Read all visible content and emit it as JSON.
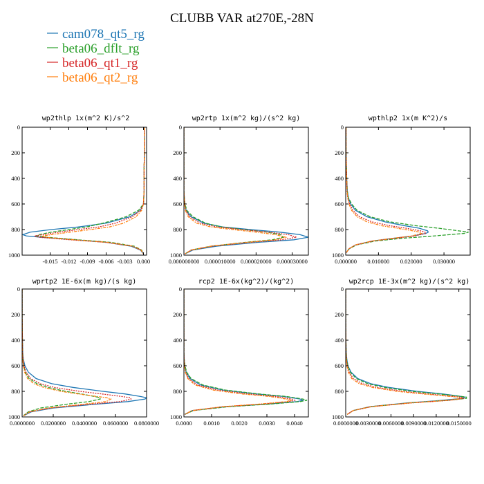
{
  "figure": {
    "title": "CLUBB VAR at270E,-28N",
    "legend": [
      {
        "name": "cam078_qt5_rg",
        "color": "#1f77b4"
      },
      {
        "name": "beta06_dflt_rg",
        "color": "#2ca02c"
      },
      {
        "name": "beta06_qt1_rg",
        "color": "#d62728"
      },
      {
        "name": "beta06_qt2_rg",
        "color": "#ff7f0e"
      }
    ]
  },
  "chart_data": [
    {
      "type": "line",
      "title": "wp2thlp  1x(m^2 K)/s^2",
      "xlim": [
        -0.0195,
        0.0005
      ],
      "xticks": [
        "-0.015",
        "-0.012",
        "-0.009",
        "-0.006",
        "-0.003",
        "0.000"
      ],
      "xtick_values": [
        -0.015,
        -0.012,
        -0.009,
        -0.006,
        -0.003,
        0.0
      ],
      "ylim": [
        1000,
        0
      ],
      "yticks": [
        "0",
        "200",
        "400",
        "600",
        "800",
        "1000"
      ],
      "y": [
        5,
        100,
        200,
        300,
        400,
        500,
        600,
        650,
        700,
        750,
        780,
        800,
        820,
        840,
        850,
        860,
        880,
        900,
        930,
        960,
        990
      ],
      "series": [
        {
          "name": "cam078_qt5_rg",
          "values": [
            0.0002,
            0.0002,
            0.0002,
            0.0001,
            0.0001,
            0.0001,
            0.0,
            -0.0005,
            -0.0022,
            -0.006,
            -0.0105,
            -0.0148,
            -0.0182,
            -0.0194,
            -0.0188,
            -0.0165,
            -0.011,
            -0.006,
            -0.002,
            -0.0005,
            0.0
          ]
        },
        {
          "name": "beta06_dflt_rg",
          "values": [
            0.0002,
            0.0002,
            0.0002,
            0.0001,
            0.0001,
            0.0001,
            0.0,
            -0.0008,
            -0.0028,
            -0.0065,
            -0.0092,
            -0.012,
            -0.0148,
            -0.0168,
            -0.0172,
            -0.0155,
            -0.0105,
            -0.0052,
            -0.0015,
            -0.0003,
            0.0
          ]
        },
        {
          "name": "beta06_qt1_rg",
          "values": [
            0.0002,
            0.0002,
            0.0002,
            0.0001,
            0.0001,
            0.0001,
            0.0,
            -0.0005,
            -0.0018,
            -0.0045,
            -0.0072,
            -0.0105,
            -0.0135,
            -0.0162,
            -0.0175,
            -0.0168,
            -0.0118,
            -0.006,
            -0.0018,
            -0.0004,
            0.0
          ]
        },
        {
          "name": "beta06_qt2_rg",
          "values": [
            0.0002,
            0.0002,
            0.0002,
            0.0001,
            0.0001,
            0.0001,
            0.0,
            -0.0003,
            -0.0012,
            -0.0032,
            -0.0055,
            -0.0085,
            -0.0118,
            -0.0148,
            -0.0163,
            -0.0158,
            -0.0112,
            -0.0058,
            -0.0017,
            -0.0004,
            0.0
          ]
        }
      ]
    },
    {
      "type": "line",
      "title": "wp2rtp  1x(m^2 kg)/(s^2 kg)",
      "xlim": [
        0.0,
        3.45e-05
      ],
      "xticks": [
        "0.000000000",
        "0.000010000",
        "0.000020000",
        "0.000030000"
      ],
      "xtick_values": [
        0.0,
        1e-05,
        2e-05,
        3e-05
      ],
      "ylim": [
        1000,
        0
      ],
      "yticks": [
        "0",
        "200",
        "400",
        "600",
        "800",
        "1000"
      ],
      "y": [
        5,
        100,
        200,
        300,
        400,
        500,
        550,
        600,
        650,
        700,
        750,
        780,
        800,
        820,
        840,
        860,
        880,
        900,
        930,
        960,
        990
      ],
      "series": [
        {
          "name": "cam078_qt5_rg",
          "values": [
            0.0,
            0.0,
            0.0,
            0.0,
            0.0,
            0.0,
            1e-07,
            2e-07,
            6e-07,
            2e-06,
            5.5e-06,
            1.08e-05,
            1.85e-05,
            2.65e-05,
            3.22e-05,
            3.45e-05,
            3.05e-05,
            2.05e-05,
            9e-06,
            2.5e-06,
            3e-07
          ]
        },
        {
          "name": "beta06_dflt_rg",
          "values": [
            0.0,
            0.0,
            0.0,
            0.0,
            0.0,
            0.0,
            1e-07,
            3e-07,
            8e-07,
            2.5e-06,
            6e-06,
            1.05e-05,
            1.65e-05,
            2.3e-05,
            2.68e-05,
            2.75e-05,
            2.45e-05,
            1.7e-05,
            7.5e-06,
            2e-06,
            3e-07
          ]
        },
        {
          "name": "beta06_qt1_rg",
          "values": [
            0.0,
            0.0,
            0.0,
            0.0,
            0.0,
            0.0,
            1e-07,
            2e-07,
            5e-07,
            1.6e-06,
            4.5e-06,
            9.2e-06,
            1.6e-05,
            2.32e-05,
            2.9e-05,
            3.12e-05,
            2.72e-05,
            1.82e-05,
            7.8e-06,
            2.1e-06,
            3e-07
          ]
        },
        {
          "name": "beta06_qt2_rg",
          "values": [
            0.0,
            0.0,
            0.0,
            0.0,
            0.0,
            0.0,
            1e-07,
            2e-07,
            4e-07,
            1.2e-06,
            3.5e-06,
            7.5e-06,
            1.35e-05,
            2e-05,
            2.55e-05,
            2.82e-05,
            2.55e-05,
            1.75e-05,
            7.5e-06,
            2e-06,
            3e-07
          ]
        }
      ]
    },
    {
      "type": "line",
      "title": "wpthlp2  1x(m K^2)/s",
      "xlim": [
        0.0,
        0.038
      ],
      "xticks": [
        "0.000000",
        "0.010000",
        "0.020000",
        "0.030000"
      ],
      "xtick_values": [
        0.0,
        0.01,
        0.02,
        0.03
      ],
      "ylim": [
        1000,
        0
      ],
      "yticks": [
        "0",
        "200",
        "400",
        "600",
        "800",
        "1000"
      ],
      "y": [
        5,
        100,
        200,
        300,
        400,
        500,
        550,
        600,
        650,
        700,
        740,
        770,
        790,
        810,
        820,
        830,
        850,
        870,
        890,
        920,
        950,
        980
      ],
      "series": [
        {
          "name": "cam078_qt5_rg",
          "values": [
            0.0001,
            0.0001,
            0.0001,
            0.0002,
            0.0003,
            0.0005,
            0.0008,
            0.0015,
            0.003,
            0.0065,
            0.012,
            0.018,
            0.0225,
            0.025,
            0.0252,
            0.0245,
            0.0205,
            0.014,
            0.008,
            0.003,
            0.001,
            0.0002
          ]
        },
        {
          "name": "beta06_dflt_rg",
          "values": [
            0.0001,
            0.0001,
            0.0001,
            0.0002,
            0.0003,
            0.0005,
            0.0008,
            0.0018,
            0.0035,
            0.0075,
            0.0135,
            0.0215,
            0.0285,
            0.0345,
            0.0375,
            0.0362,
            0.027,
            0.0165,
            0.009,
            0.0033,
            0.0011,
            0.0002
          ]
        },
        {
          "name": "beta06_qt1_rg",
          "values": [
            0.0001,
            0.0001,
            0.0001,
            0.0002,
            0.0003,
            0.0004,
            0.0006,
            0.0012,
            0.0022,
            0.0042,
            0.008,
            0.0135,
            0.0185,
            0.0228,
            0.0242,
            0.0245,
            0.021,
            0.0145,
            0.0082,
            0.003,
            0.001,
            0.0002
          ]
        },
        {
          "name": "beta06_qt2_rg",
          "values": [
            0.0001,
            0.0001,
            0.0001,
            0.0002,
            0.0003,
            0.0004,
            0.0006,
            0.001,
            0.0018,
            0.0035,
            0.0065,
            0.011,
            0.0158,
            0.0205,
            0.0225,
            0.0232,
            0.0202,
            0.014,
            0.008,
            0.003,
            0.001,
            0.0002
          ]
        }
      ]
    },
    {
      "type": "line",
      "title": "wprtp2  1E-6x(m kg)/(s kg)",
      "xlim": [
        0.0,
        0.08
      ],
      "xticks": [
        "0.0000000",
        "0.0200000",
        "0.0400000",
        "0.0600000",
        "0.0800000"
      ],
      "xtick_values": [
        0.0,
        0.02,
        0.04,
        0.06,
        0.08
      ],
      "ylim": [
        1000,
        0
      ],
      "yticks": [
        "0",
        "200",
        "400",
        "600",
        "800",
        "1000"
      ],
      "y": [
        5,
        100,
        200,
        300,
        400,
        500,
        550,
        600,
        650,
        700,
        740,
        770,
        800,
        820,
        840,
        850,
        860,
        880,
        900,
        930,
        960,
        990
      ],
      "series": [
        {
          "name": "cam078_qt5_rg",
          "values": [
            0.0,
            0.0,
            0.0,
            0.0001,
            0.0002,
            0.0004,
            0.0008,
            0.0018,
            0.004,
            0.009,
            0.019,
            0.033,
            0.052,
            0.066,
            0.076,
            0.08,
            0.079,
            0.068,
            0.048,
            0.02,
            0.006,
            0.001
          ]
        },
        {
          "name": "beta06_dflt_rg",
          "values": [
            0.0,
            0.0,
            0.0,
            0.0001,
            0.0002,
            0.0003,
            0.0005,
            0.001,
            0.002,
            0.0045,
            0.0095,
            0.017,
            0.028,
            0.038,
            0.0465,
            0.05,
            0.0502,
            0.043,
            0.029,
            0.012,
            0.004,
            0.0008
          ]
        },
        {
          "name": "beta06_qt1_rg",
          "values": [
            0.0,
            0.0,
            0.0,
            0.0001,
            0.0002,
            0.0003,
            0.0006,
            0.0012,
            0.0025,
            0.0055,
            0.0115,
            0.021,
            0.037,
            0.051,
            0.064,
            0.0695,
            0.07,
            0.063,
            0.044,
            0.018,
            0.005,
            0.001
          ]
        },
        {
          "name": "beta06_qt2_rg",
          "values": [
            0.0,
            0.0,
            0.0,
            0.0001,
            0.0001,
            0.0002,
            0.0004,
            0.0008,
            0.0016,
            0.0035,
            0.0075,
            0.014,
            0.025,
            0.036,
            0.048,
            0.0545,
            0.057,
            0.054,
            0.04,
            0.017,
            0.005,
            0.001
          ]
        }
      ]
    },
    {
      "type": "line",
      "title": "rcp2  1E-6x(kg^2)/(kg^2)",
      "xlim": [
        0.0,
        0.0045
      ],
      "xticks": [
        "0.0000",
        "0.0010",
        "0.0020",
        "0.0030",
        "0.0040"
      ],
      "xtick_values": [
        0.0,
        0.001,
        0.002,
        0.003,
        0.004
      ],
      "ylim": [
        1000,
        0
      ],
      "yticks": [
        "0",
        "200",
        "400",
        "600",
        "800",
        "1000"
      ],
      "y": [
        5,
        100,
        200,
        300,
        400,
        500,
        550,
        600,
        650,
        700,
        750,
        790,
        820,
        840,
        860,
        870,
        880,
        900,
        920,
        950,
        980
      ],
      "series": [
        {
          "name": "cam078_qt5_rg",
          "values": [
            0.0,
            0.0,
            0.0,
            0.0,
            0.0,
            0.0,
            1e-05,
            3e-05,
            8e-05,
            0.00022,
            0.0006,
            0.0014,
            0.0026,
            0.0036,
            0.0042,
            0.0043,
            0.0041,
            0.003,
            0.0015,
            0.0003,
            3e-05
          ]
        },
        {
          "name": "beta06_dflt_rg",
          "values": [
            0.0,
            0.0,
            0.0,
            0.0,
            0.0,
            0.0,
            1e-05,
            4e-05,
            0.0001,
            0.00026,
            0.00068,
            0.0015,
            0.0027,
            0.0037,
            0.0043,
            0.00445,
            0.0042,
            0.0031,
            0.0016,
            0.00035,
            3e-05
          ]
        },
        {
          "name": "beta06_qt1_rg",
          "values": [
            0.0,
            0.0,
            0.0,
            0.0,
            0.0,
            0.0,
            1e-05,
            2e-05,
            6e-05,
            0.00017,
            0.00048,
            0.0012,
            0.0023,
            0.0033,
            0.0039,
            0.004,
            0.0038,
            0.0028,
            0.0014,
            0.0003,
            3e-05
          ]
        },
        {
          "name": "beta06_qt2_rg",
          "values": [
            0.0,
            0.0,
            0.0,
            0.0,
            0.0,
            0.0,
            0.0,
            2e-05,
            5e-05,
            0.00014,
            0.0004,
            0.00105,
            0.0021,
            0.0031,
            0.0037,
            0.0039,
            0.0037,
            0.0027,
            0.0014,
            0.0003,
            3e-05
          ]
        }
      ]
    },
    {
      "type": "line",
      "title": "wp2rcp  1E-3x(m^2 kg)/(s^2 kg)",
      "xlim": [
        0.0,
        0.0165
      ],
      "xticks": [
        "0.0000000",
        "0.0030000",
        "0.0060000",
        "0.0090000",
        "0.0120000",
        "0.0150000"
      ],
      "xtick_values": [
        0.0,
        0.003,
        0.006,
        0.009,
        0.012,
        0.015
      ],
      "ylim": [
        1000,
        0
      ],
      "yticks": [
        "0",
        "200",
        "400",
        "600",
        "800",
        "1000"
      ],
      "y": [
        5,
        100,
        200,
        300,
        400,
        500,
        550,
        600,
        650,
        700,
        740,
        770,
        800,
        820,
        835,
        845,
        855,
        870,
        890,
        920,
        950,
        980
      ],
      "series": [
        {
          "name": "cam078_qt5_rg",
          "values": [
            0.0,
            0.0,
            0.0,
            1e-05,
            3e-05,
            8e-05,
            0.00015,
            0.0003,
            0.0007,
            0.0016,
            0.0033,
            0.0058,
            0.0095,
            0.0128,
            0.0148,
            0.0158,
            0.0155,
            0.0128,
            0.0082,
            0.0032,
            0.001,
            0.0002
          ]
        },
        {
          "name": "beta06_dflt_rg",
          "values": [
            0.0,
            0.0,
            0.0,
            1e-05,
            3e-05,
            7e-05,
            0.00013,
            0.00028,
            0.0006,
            0.0014,
            0.0029,
            0.0052,
            0.0088,
            0.0123,
            0.0147,
            0.016,
            0.016,
            0.0135,
            0.0085,
            0.0033,
            0.001,
            0.0002
          ]
        },
        {
          "name": "beta06_qt1_rg",
          "values": [
            0.0,
            0.0,
            0.0,
            1e-05,
            2e-05,
            5e-05,
            0.0001,
            0.0002,
            0.00045,
            0.001,
            0.0022,
            0.0042,
            0.0075,
            0.0108,
            0.0135,
            0.0152,
            0.0157,
            0.0138,
            0.0088,
            0.0034,
            0.001,
            0.0002
          ]
        },
        {
          "name": "beta06_qt2_rg",
          "values": [
            0.0,
            0.0,
            0.0,
            0.0,
            2e-05,
            4e-05,
            8e-05,
            0.00016,
            0.00035,
            0.0008,
            0.0018,
            0.0036,
            0.0068,
            0.0102,
            0.013,
            0.0148,
            0.0154,
            0.0136,
            0.0086,
            0.0033,
            0.001,
            0.0002
          ]
        }
      ]
    }
  ]
}
